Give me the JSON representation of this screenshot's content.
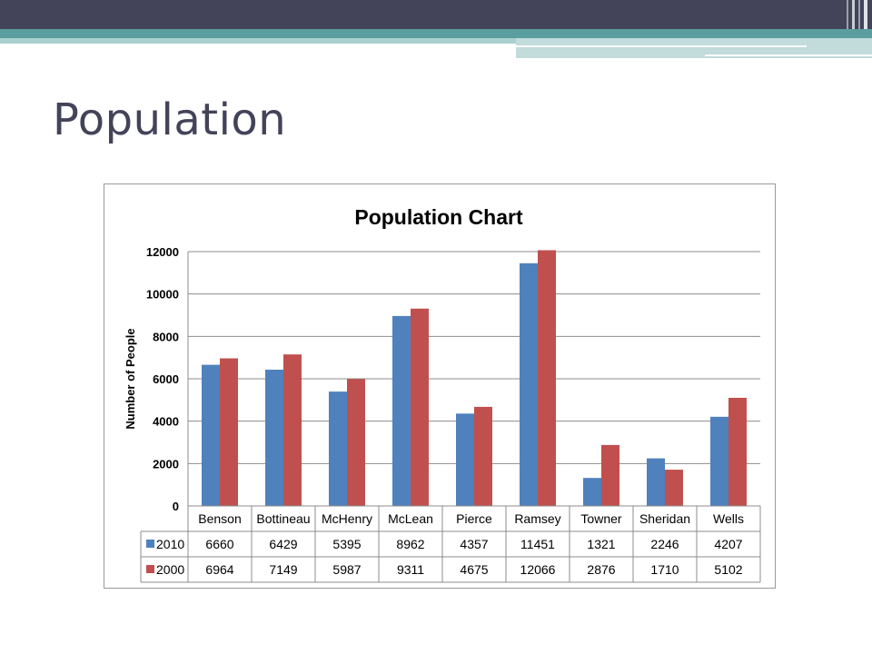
{
  "slide": {
    "title": "Population"
  },
  "colors": {
    "series_2010": "#4f81bd",
    "series_2000": "#c0504d",
    "header_bar": "#43435a",
    "accent": "#5a9ea0"
  },
  "chart_data": {
    "type": "bar",
    "title": "Population Chart",
    "xlabel": "",
    "ylabel": "Number of People",
    "ylim": [
      0,
      12000
    ],
    "yticks": [
      0,
      2000,
      4000,
      6000,
      8000,
      10000,
      12000
    ],
    "grid": true,
    "legend": "data-table",
    "categories": [
      "Benson",
      "Bottineau",
      "McHenry",
      "McLean",
      "Pierce",
      "Ramsey",
      "Towner",
      "Sheridan",
      "Wells"
    ],
    "series": [
      {
        "name": "2010",
        "color": "#4f81bd",
        "values": [
          6660,
          6429,
          5395,
          8962,
          4357,
          11451,
          1321,
          2246,
          4207
        ]
      },
      {
        "name": "2000",
        "color": "#c0504d",
        "values": [
          6964,
          7149,
          5987,
          9311,
          4675,
          12066,
          2876,
          1710,
          5102
        ]
      }
    ]
  }
}
